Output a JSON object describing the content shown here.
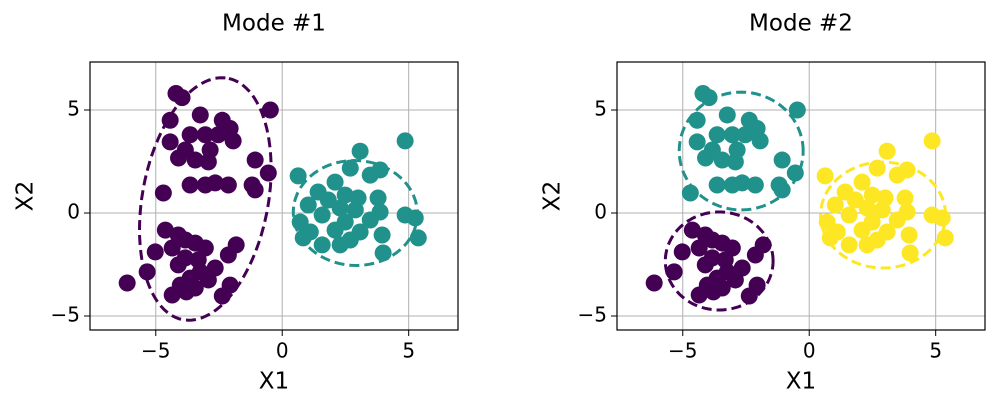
{
  "chart_data": [
    {
      "type": "scatter",
      "title": "Mode #1",
      "x_label": "X1",
      "y_label": "X2",
      "xlim": [
        -7.6,
        6.95
      ],
      "ylim": [
        -5.68,
        7.33
      ],
      "xticks": [
        {
          "value": -5,
          "label": "−5"
        },
        0,
        5
      ],
      "yticks": [
        {
          "value": -5,
          "label": "−5"
        },
        0,
        5
      ],
      "grid": true,
      "series": [
        {
          "color": "#440154",
          "x": [
            -4.2,
            -3.96,
            -0.47,
            -3.24,
            -4.43,
            -2.37,
            -2.06,
            -3.64,
            -3.04,
            -2.53,
            -4.43,
            -1.94,
            -3.83,
            -2.85,
            -4.1,
            -3.44,
            -2.92,
            -1.07,
            -0.55,
            -3.04,
            -2.65,
            -2.13,
            -1.19,
            -3.64,
            -4.7,
            -1.07,
            -4.62,
            -4.11,
            -3.83,
            -3.44,
            -4.35,
            -3.04,
            -1.82,
            -5.02,
            -2.13,
            -3.83,
            -3.32,
            -4.11,
            -2.65,
            -5.34,
            -3.24,
            -3.64,
            -2.92,
            -4.03,
            -3.44,
            -2.06,
            -6.13,
            -4.35,
            -3.79,
            -2.37
          ],
          "values": [
            5.8,
            5.6,
            5.0,
            4.76,
            4.5,
            4.5,
            4.1,
            3.8,
            3.8,
            3.8,
            3.45,
            3.5,
            3.06,
            3.06,
            2.67,
            2.57,
            2.48,
            2.57,
            1.94,
            1.36,
            1.46,
            1.36,
            1.36,
            1.36,
            0.97,
            1.12,
            -0.83,
            -1.07,
            -1.31,
            -1.46,
            -1.7,
            -1.7,
            -1.55,
            -1.89,
            -2.04,
            -2.18,
            -2.28,
            -2.52,
            -2.67,
            -2.86,
            -2.86,
            -3.16,
            -3.25,
            -3.5,
            -3.64,
            -3.5,
            -3.4,
            -3.98,
            -3.83,
            -4.03
          ]
        },
        {
          "color": "#21918c",
          "x": [
            4.86,
            3.08,
            2.69,
            3.48,
            3.87,
            0.63,
            2.09,
            1.42,
            2.49,
            3.0,
            1.82,
            3.79,
            1.03,
            2.29,
            2.89,
            3.87,
            4.86,
            5.26,
            1.58,
            0.71,
            2.49,
            3.48,
            1.11,
            2.09,
            3.08,
            0.83,
            1.58,
            2.69,
            3.95,
            5.38,
            3.99,
            2.29
          ],
          "values": [
            3.5,
            3.0,
            2.18,
            1.84,
            2.09,
            1.8,
            1.5,
            1.02,
            0.87,
            0.73,
            0.63,
            0.73,
            0.39,
            0.24,
            0.15,
            0.05,
            -0.1,
            -0.24,
            -0.1,
            -0.44,
            -0.44,
            -0.34,
            -0.92,
            -0.83,
            -0.92,
            -1.21,
            -1.55,
            -1.31,
            -1.07,
            -1.21,
            -1.94,
            -1.55
          ]
        }
      ],
      "ellipses": [
        {
          "cx": -3.04,
          "cy": 0.68,
          "rx": 5.93,
          "ry": 2.5,
          "angle": 82.3,
          "color": "#440154"
        },
        {
          "cx": 2.89,
          "cy": 0.0,
          "rx": 2.45,
          "ry": 2.55,
          "angle": 10,
          "color": "#21918c"
        }
      ]
    },
    {
      "type": "scatter",
      "title": "Mode #2",
      "x_label": "X1",
      "y_label": "X2",
      "xlim": [
        -7.6,
        6.95
      ],
      "ylim": [
        -5.68,
        7.33
      ],
      "xticks": [
        {
          "value": -5,
          "label": "−5"
        },
        0,
        5
      ],
      "yticks": [
        {
          "value": -5,
          "label": "−5"
        },
        0,
        5
      ],
      "grid": true,
      "series": [
        {
          "color": "#21918c",
          "x": [
            -4.2,
            -3.96,
            -0.47,
            -3.24,
            -4.43,
            -2.37,
            -2.06,
            -3.64,
            -3.04,
            -2.53,
            -4.43,
            -1.94,
            -3.83,
            -2.85,
            -4.1,
            -3.44,
            -2.92,
            -1.07,
            -0.55,
            -3.04,
            -2.65,
            -2.13,
            -1.19,
            -3.64,
            -4.7,
            -1.07
          ],
          "values": [
            5.8,
            5.6,
            5.0,
            4.76,
            4.5,
            4.5,
            4.1,
            3.8,
            3.8,
            3.8,
            3.45,
            3.5,
            3.06,
            3.06,
            2.67,
            2.57,
            2.48,
            2.57,
            1.94,
            1.36,
            1.46,
            1.36,
            1.36,
            1.36,
            0.97,
            1.12
          ]
        },
        {
          "color": "#440154",
          "x": [
            -4.62,
            -4.11,
            -3.83,
            -3.44,
            -4.35,
            -3.04,
            -1.82,
            -5.02,
            -2.13,
            -3.83,
            -3.32,
            -4.11,
            -2.65,
            -5.34,
            -3.24,
            -3.64,
            -2.92,
            -4.03,
            -3.44,
            -2.06,
            -6.13,
            -4.35,
            -3.79,
            -2.37
          ],
          "values": [
            -0.83,
            -1.07,
            -1.31,
            -1.46,
            -1.7,
            -1.7,
            -1.55,
            -1.89,
            -2.04,
            -2.18,
            -2.28,
            -2.52,
            -2.67,
            -2.86,
            -2.86,
            -3.16,
            -3.25,
            -3.5,
            -3.64,
            -3.5,
            -3.4,
            -3.98,
            -3.83,
            -4.03
          ]
        },
        {
          "color": "#fde725",
          "x": [
            4.86,
            3.08,
            2.69,
            3.48,
            3.87,
            0.63,
            2.09,
            1.42,
            2.49,
            3.0,
            1.82,
            3.79,
            1.03,
            2.29,
            2.89,
            3.87,
            4.86,
            5.26,
            1.58,
            0.71,
            2.49,
            3.48,
            1.11,
            2.09,
            3.08,
            0.83,
            1.58,
            2.69,
            3.95,
            5.38,
            3.99,
            2.29
          ],
          "values": [
            3.5,
            3.0,
            2.18,
            1.84,
            2.09,
            1.8,
            1.5,
            1.02,
            0.87,
            0.73,
            0.63,
            0.73,
            0.39,
            0.24,
            0.15,
            0.05,
            -0.1,
            -0.24,
            -0.1,
            -0.44,
            -0.44,
            -0.34,
            -0.92,
            -0.83,
            -0.92,
            -1.21,
            -1.55,
            -1.31,
            -1.07,
            -1.21,
            -1.94,
            -1.55
          ]
        }
      ],
      "ellipses": [
        {
          "cx": -2.69,
          "cy": 3.01,
          "rx": 2.45,
          "ry": 2.86,
          "angle": 0,
          "color": "#21918c"
        },
        {
          "cx": -3.56,
          "cy": -2.33,
          "rx": 2.13,
          "ry": 2.38,
          "angle": 0,
          "color": "#440154"
        },
        {
          "cx": 2.92,
          "cy": -0.1,
          "rx": 2.47,
          "ry": 2.57,
          "angle": 0,
          "color": "#fde725"
        }
      ]
    }
  ]
}
